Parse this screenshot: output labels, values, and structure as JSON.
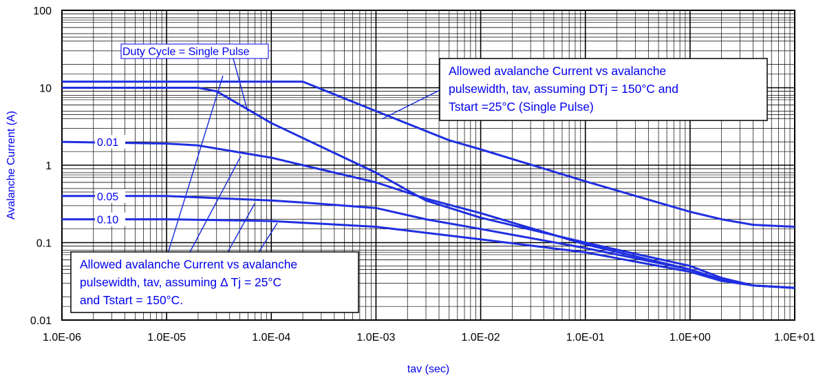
{
  "chart_data": {
    "type": "line",
    "xlabel": "tav (sec)",
    "ylabel": "Avalanche Current (A)",
    "x_scale": "log",
    "y_scale": "log",
    "xlim": [
      1e-06,
      10
    ],
    "ylim": [
      0.01,
      100
    ],
    "grid": true,
    "x_tick_labels": [
      "1.0E-06",
      "1.0E-05",
      "1.0E-04",
      "1.0E-03",
      "1.0E-02",
      "1.0E-01",
      "1.0E+00",
      "1.0E+01"
    ],
    "y_tick_labels": [
      "0.01",
      "0.1",
      "1",
      "10",
      "100"
    ],
    "series_color": "#1f2fe0",
    "series": [
      {
        "label_text": "",
        "x": [
          1e-06,
          0.0002,
          0.001,
          0.005,
          0.01,
          0.1,
          1,
          2,
          4,
          10
        ],
        "y": [
          12,
          12,
          5,
          2.1,
          1.6,
          0.62,
          0.25,
          0.2,
          0.17,
          0.16
        ]
      },
      {
        "label_text": "",
        "x": [
          1e-06,
          2e-05,
          3e-05,
          0.0001,
          0.001,
          0.003,
          0.01,
          0.1,
          1,
          2,
          4,
          10
        ],
        "y": [
          10,
          10,
          9,
          3.5,
          0.8,
          0.35,
          0.21,
          0.1,
          0.05,
          0.035,
          0.028,
          0.026
        ]
      },
      {
        "label_text": "0.01",
        "x": [
          1e-06,
          1e-05,
          2e-05,
          0.0001,
          0.0002,
          0.001,
          0.003,
          0.01,
          0.1,
          1,
          2,
          4,
          10
        ],
        "y": [
          2,
          1.9,
          1.8,
          1.25,
          1.0,
          0.6,
          0.37,
          0.24,
          0.095,
          0.045,
          0.033,
          0.028,
          0.026
        ]
      },
      {
        "label_text": "0.05",
        "x": [
          1e-06,
          1e-05,
          0.0001,
          0.0002,
          0.001,
          0.003,
          0.01,
          0.1,
          1,
          2,
          4,
          10
        ],
        "y": [
          0.4,
          0.4,
          0.35,
          0.33,
          0.28,
          0.2,
          0.15,
          0.085,
          0.045,
          0.033,
          0.028,
          0.026
        ]
      },
      {
        "label_text": "0.10",
        "x": [
          1e-06,
          1e-05,
          0.0001,
          0.001,
          0.01,
          0.1,
          1,
          2,
          4,
          10
        ],
        "y": [
          0.2,
          0.2,
          0.19,
          0.16,
          0.11,
          0.075,
          0.042,
          0.032,
          0.028,
          0.026
        ]
      }
    ],
    "annotations": {
      "duty_cycle": "Duty Cycle = Single Pulse",
      "single_pulse_note": [
        "Allowed  avalanche  Current  vs  avalanche",
        "pulsewidth, tav, assuming DTj = 150°C and",
        "Tstart =25°C (Single Pulse)"
      ],
      "repetitive_note": [
        "Allowed avalanche Current vs avalanche",
        "pulsewidth,  tav,  assuming   Δ Tj = 25°C",
        "and Tstart = 150°C."
      ]
    }
  }
}
